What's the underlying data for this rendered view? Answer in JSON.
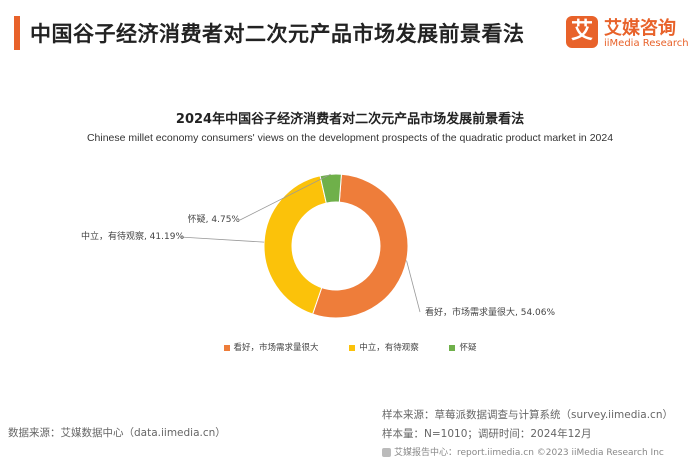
{
  "header": {
    "title": "中国谷子经济消费者对二次元产品市场发展前景看法"
  },
  "brand": {
    "logo_char": "艾",
    "name_cn": "艾媒咨询",
    "name_en": "iiMedia Research",
    "accent_color": "#e8622a"
  },
  "chart_data": {
    "type": "pie",
    "variant": "donut",
    "title": "2024年中国谷子经济消费者对二次元产品市场发展前景看法",
    "subtitle": "Chinese millet economy consumers' views on the development prospects of the quadratic product market in 2024",
    "slices": [
      {
        "name": "看好，市场需求量很大",
        "value": 54.06,
        "label": "看好，市场需求量很大, 54.06%",
        "color": "#ee7d3a"
      },
      {
        "name": "中立，有待观察",
        "value": 41.19,
        "label": "中立，有待观察, 41.19%",
        "color": "#fbc20a"
      },
      {
        "name": "怀疑",
        "value": 4.75,
        "label": "怀疑, 4.75%",
        "color": "#6fb04a"
      }
    ],
    "legend_position": "bottom"
  },
  "footer": {
    "source_left": "数据来源：艾媒数据中心（data.iimedia.cn）",
    "sample_source": "样本来源：草莓派数据调查与计算系统（survey.iimedia.cn）",
    "sample_size": "样本量：N=1010；调研时间：2024年12月",
    "copyright": "艾媒报告中心：report.iimedia.cn   ©2023  iiMedia Research  Inc"
  }
}
